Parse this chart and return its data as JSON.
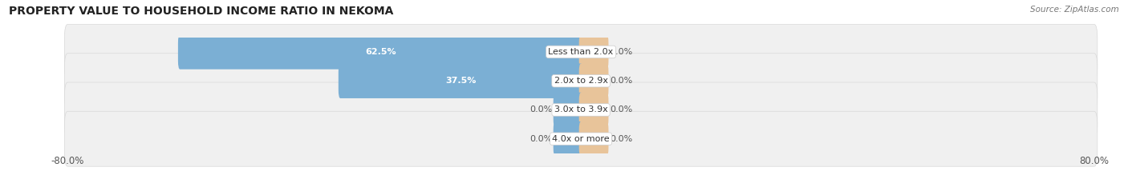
{
  "title": "PROPERTY VALUE TO HOUSEHOLD INCOME RATIO IN NEKOMA",
  "source": "Source: ZipAtlas.com",
  "categories": [
    "Less than 2.0x",
    "2.0x to 2.9x",
    "3.0x to 3.9x",
    "4.0x or more"
  ],
  "without_mortgage": [
    62.5,
    37.5,
    0.0,
    0.0
  ],
  "with_mortgage": [
    0.0,
    0.0,
    0.0,
    0.0
  ],
  "color_without": "#7bafd4",
  "color_with": "#e8c49a",
  "row_bg_color": "#f0f0f0",
  "row_edge_color": "#d8d8d8",
  "xlim_left": -80,
  "xlim_right": 80,
  "x_left_label": "-80.0%",
  "x_right_label": "80.0%",
  "title_fontsize": 10,
  "bar_height": 0.6,
  "stub_size": 4.0,
  "cat_label_fontsize": 8,
  "value_label_fontsize": 8
}
